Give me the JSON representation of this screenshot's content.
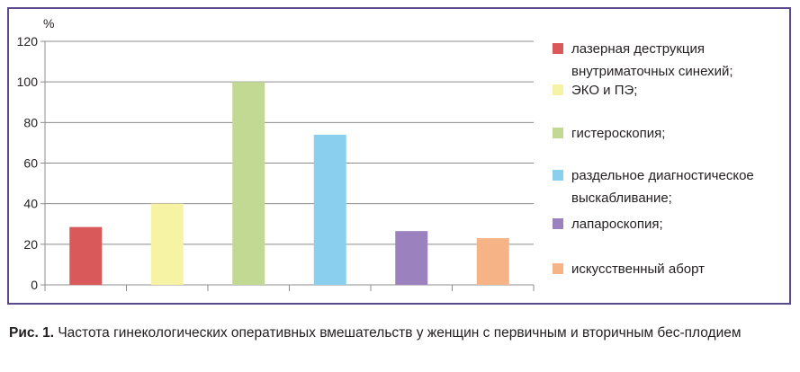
{
  "chart_data": {
    "type": "bar",
    "ylabel": "%",
    "ylim": [
      0,
      120
    ],
    "yticks": [
      0,
      20,
      40,
      60,
      80,
      100,
      120
    ],
    "grid": true,
    "legend_position": "right",
    "categories": [
      "лазерная деструкция внутриматочных синехий;",
      "ЭКО и ПЭ;",
      "гистероскопия;",
      "раздельное диагностическое выскабливание;",
      "лапароскопия;",
      "искусственный аборт"
    ],
    "legend_lines": [
      [
        "лазерная деструкция",
        "внутриматочных синехий;"
      ],
      [
        "ЭКО и ПЭ;"
      ],
      [
        "гистероскопия;"
      ],
      [
        "раздельное диагностическое",
        "выскабливание;"
      ],
      [
        "лапароскопия;"
      ],
      [
        "искусственный аборт"
      ]
    ],
    "values": [
      28.5,
      40,
      100,
      74,
      26.5,
      23
    ],
    "colors": [
      "#d9595b",
      "#f6f3a5",
      "#c2d993",
      "#8ad0ee",
      "#9b82bf",
      "#f6b486"
    ]
  },
  "caption": {
    "label": "Рис. 1.",
    "text": "Частота гинекологических оперативных вмешательств у женщин с первичным и вторичным бес-плодием"
  }
}
